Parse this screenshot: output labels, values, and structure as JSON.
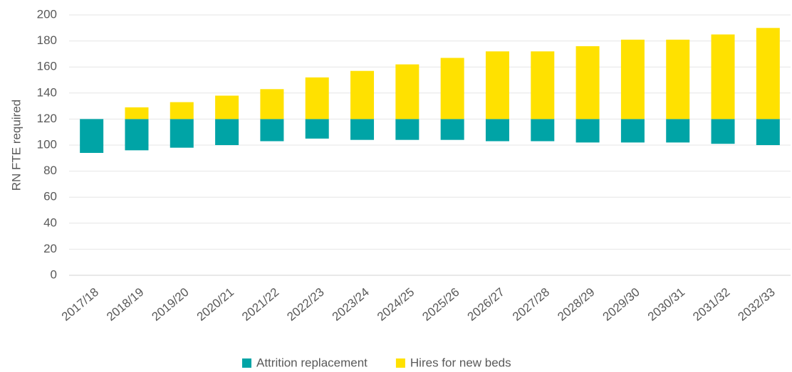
{
  "chart_data": {
    "type": "floating_bar",
    "y_label": "RN FTE required",
    "categories": [
      "2017/18",
      "2018/19",
      "2019/20",
      "2020/21",
      "2021/22",
      "2022/23",
      "2023/24",
      "2024/25",
      "2025/26",
      "2026/27",
      "2027/28",
      "2028/29",
      "2029/30",
      "2030/31",
      "2031/32",
      "2032/33"
    ],
    "series": [
      {
        "name": "Attrition replacement",
        "color": "#00a4a6",
        "from": [
          94,
          96,
          98,
          100,
          103,
          105,
          104,
          104,
          104,
          103,
          103,
          102,
          102,
          102,
          101,
          100
        ],
        "to": [
          120,
          120,
          120,
          120,
          120,
          120,
          120,
          120,
          120,
          120,
          120,
          120,
          120,
          120,
          120,
          120
        ]
      },
      {
        "name": "Hires for new beds",
        "color": "#ffe100",
        "from": [
          120,
          120,
          120,
          120,
          120,
          120,
          120,
          120,
          120,
          120,
          120,
          120,
          120,
          120,
          120,
          120
        ],
        "to": [
          120,
          129,
          133,
          138,
          143,
          152,
          157,
          162,
          167,
          172,
          172,
          176,
          181,
          181,
          185,
          190
        ]
      }
    ],
    "ylim": [
      0,
      200
    ],
    "yticks": [
      0,
      20,
      40,
      60,
      80,
      100,
      120,
      140,
      160,
      180,
      200
    ],
    "grid": true,
    "legend": "bottom"
  }
}
